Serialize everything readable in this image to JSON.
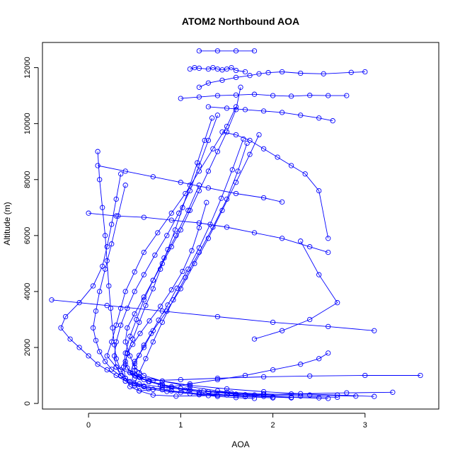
{
  "chart_data": {
    "type": "line",
    "title": "ATOM2 Northbound AOA",
    "xlabel": "AOA",
    "ylabel": "Altitude (m)",
    "xlim": [
      -0.5,
      3.8
    ],
    "ylim": [
      -200,
      12900
    ],
    "x_ticks": [
      0,
      1,
      2,
      3
    ],
    "y_ticks": [
      0,
      2000,
      4000,
      6000,
      8000,
      10000,
      12000
    ],
    "grid": false,
    "legend": "none",
    "color": "#0000ff",
    "markers": "open-circle",
    "series": [
      {
        "x": [
          2.6,
          2.2,
          1.8,
          1.4,
          1.1,
          0.8,
          0.6,
          0.5,
          0.45,
          0.4,
          0.42,
          0.5,
          0.6,
          0.7,
          0.8,
          0.9,
          1.0,
          1.1,
          1.2,
          1.3,
          1.4,
          1.5,
          1.6,
          1.65
        ],
        "y": [
          180,
          220,
          300,
          450,
          600,
          800,
          1000,
          1300,
          1700,
          2200,
          2700,
          3200,
          3800,
          4400,
          5000,
          5600,
          6200,
          6900,
          7600,
          8300,
          9000,
          9700,
          10500,
          11300
        ]
      },
      {
        "x": [
          3.1,
          2.7,
          2.3,
          1.9,
          1.5,
          1.1,
          0.8,
          0.5,
          0.3,
          0.2,
          0.25,
          0.3,
          0.35,
          0.4,
          0.5,
          0.6,
          0.75,
          0.9,
          1.05,
          1.2,
          1.35,
          1.5,
          1.6
        ],
        "y": [
          250,
          300,
          350,
          420,
          520,
          650,
          800,
          1000,
          1300,
          1700,
          2200,
          2800,
          3400,
          4000,
          4700,
          5400,
          6100,
          6800,
          7500,
          8300,
          9100,
          9900,
          10600
        ]
      },
      {
        "x": [
          2.5,
          2.0,
          1.6,
          1.2,
          0.9,
          0.6,
          0.4,
          0.3,
          0.2,
          0.1,
          0.0,
          -0.1,
          -0.2,
          -0.3,
          -0.25,
          -0.1,
          0.05,
          0.15,
          0.2,
          0.25,
          0.3,
          0.35
        ],
        "y": [
          200,
          230,
          280,
          350,
          450,
          600,
          800,
          1000,
          1200,
          1400,
          1700,
          2000,
          2300,
          2700,
          3100,
          3600,
          4200,
          4900,
          5600,
          6400,
          7300,
          8200
        ]
      },
      {
        "x": [
          2.9,
          2.4,
          1.9,
          1.5,
          1.1,
          0.8,
          0.55,
          0.4,
          0.35,
          0.3,
          0.28,
          0.26,
          0.24,
          0.22,
          0.2,
          0.18,
          0.15,
          0.12,
          0.1
        ],
        "y": [
          260,
          300,
          340,
          400,
          480,
          580,
          700,
          900,
          1200,
          1600,
          2100,
          2700,
          3400,
          4200,
          5100,
          6000,
          7000,
          8000,
          9000
        ]
      },
      {
        "x": [
          3.6,
          3.0,
          2.4,
          1.9,
          1.4,
          1.0,
          0.7,
          0.5,
          0.45,
          0.5,
          0.6,
          0.7,
          0.85,
          1.0,
          1.15,
          1.3,
          1.45,
          1.6,
          1.75,
          1.85
        ],
        "y": [
          1000,
          1000,
          980,
          950,
          900,
          850,
          820,
          900,
          1100,
          1500,
          2000,
          2600,
          3300,
          4100,
          5000,
          5900,
          6900,
          7900,
          8900,
          9600
        ]
      },
      {
        "x": [
          2.2,
          1.9,
          1.6,
          1.3,
          1.0,
          0.8,
          0.6,
          0.45,
          0.4,
          0.42,
          0.48,
          0.55,
          0.62,
          0.7,
          0.78,
          0.86,
          0.94,
          1.02,
          1.1,
          1.18,
          1.26,
          1.34
        ],
        "y": [
          200,
          250,
          330,
          420,
          540,
          680,
          850,
          1100,
          1400,
          1800,
          2300,
          2900,
          3500,
          4100,
          4800,
          5500,
          6200,
          7000,
          7800,
          8600,
          9400,
          10200
        ]
      },
      {
        "x": [
          2.6,
          2.5,
          2.3,
          2.0,
          1.7,
          1.4,
          1.1,
          0.9,
          0.7,
          0.55,
          0.45,
          0.4,
          0.38,
          0.4,
          0.45,
          0.52,
          0.6,
          0.7,
          0.82,
          0.95,
          1.08,
          1.2
        ],
        "y": [
          1800,
          1600,
          1400,
          1200,
          1000,
          850,
          700,
          600,
          500,
          450,
          600,
          900,
          1300,
          1800,
          2400,
          3000,
          3700,
          4400,
          5200,
          6000,
          6900,
          7800
        ]
      },
      {
        "x": [
          2.0,
          1.7,
          1.4,
          1.1,
          0.85,
          0.65,
          0.5,
          0.4,
          0.35,
          0.3,
          0.28,
          0.3,
          0.35,
          0.42,
          0.5,
          0.6,
          0.72,
          0.85,
          0.98,
          1.1,
          1.2,
          1.3,
          1.4
        ],
        "y": [
          200,
          240,
          290,
          350,
          430,
          520,
          640,
          800,
          1000,
          1300,
          1700,
          2200,
          2800,
          3400,
          4000,
          4600,
          5300,
          6000,
          6800,
          7600,
          8500,
          9400,
          10300
        ]
      },
      {
        "x": [
          3.3,
          2.8,
          2.2,
          1.7,
          1.3,
          0.95,
          0.7,
          0.55,
          0.5,
          0.55,
          0.62,
          0.7,
          0.8,
          0.92,
          1.05,
          1.2,
          1.35,
          1.5,
          1.62,
          1.72
        ],
        "y": [
          400,
          380,
          340,
          310,
          280,
          260,
          300,
          450,
          700,
          1100,
          1600,
          2200,
          2900,
          3700,
          4500,
          5400,
          6300,
          7300,
          8300,
          9300
        ]
      },
      {
        "x": [
          1.8,
          1.6,
          1.4,
          1.2,
          1.0,
          0.8,
          0.6,
          0.45,
          0.35,
          0.25,
          0.18,
          0.12,
          0.08,
          0.05,
          0.08,
          0.12,
          0.18,
          0.25,
          0.32,
          0.4
        ],
        "y": [
          180,
          210,
          250,
          310,
          390,
          490,
          620,
          780,
          980,
          1220,
          1500,
          1850,
          2250,
          2700,
          3300,
          4000,
          4800,
          5700,
          6700,
          7800
        ]
      },
      {
        "x": [
          2.7,
          2.3,
          1.9,
          1.55,
          1.25,
          1.0,
          0.8,
          0.65,
          0.55,
          0.5,
          0.5,
          0.55,
          0.6,
          0.68,
          0.76,
          0.86,
          0.96,
          1.08,
          1.2,
          1.32,
          1.44,
          1.56,
          1.68
        ],
        "y": [
          220,
          260,
          310,
          370,
          450,
          540,
          650,
          790,
          960,
          1170,
          1420,
          1720,
          2080,
          2500,
          2980,
          3520,
          4120,
          4800,
          5560,
          6400,
          7330,
          8350,
          9450
        ]
      },
      {
        "x": [
          1.5,
          1.35,
          1.2,
          1.05,
          0.9,
          0.78,
          0.66,
          0.56,
          0.48,
          0.42,
          0.4,
          0.42,
          0.48,
          0.56,
          0.66,
          0.78,
          0.9,
          1.02,
          1.12,
          1.2,
          1.28
        ],
        "y": [
          300,
          350,
          410,
          480,
          560,
          660,
          780,
          920,
          1080,
          1270,
          1500,
          1780,
          2110,
          2500,
          2950,
          3470,
          4060,
          4720,
          5460,
          6280,
          7180
        ]
      },
      {
        "x": [
          1.2,
          1.3,
          1.45,
          1.6,
          1.75,
          1.85,
          1.95,
          2.1,
          2.3,
          2.55,
          2.85,
          3.0
        ],
        "y": [
          11300,
          11450,
          11550,
          11650,
          11720,
          11780,
          11820,
          11850,
          11800,
          11780,
          11830,
          11850
        ]
      },
      {
        "x": [
          1.0,
          1.2,
          1.4,
          1.6,
          1.8,
          2.0,
          2.2,
          2.4,
          2.6,
          2.8
        ],
        "y": [
          10900,
          10950,
          11000,
          11020,
          11050,
          11000,
          10980,
          11010,
          11000,
          11000
        ]
      },
      {
        "x": [
          1.2,
          1.4,
          1.6,
          1.8
        ],
        "y": [
          12600,
          12600,
          12600,
          12600
        ]
      },
      {
        "x": [
          1.1,
          1.15,
          1.2,
          1.3,
          1.35,
          1.4,
          1.45,
          1.5,
          1.55,
          1.6,
          1.7
        ],
        "y": [
          11950,
          12000,
          11980,
          11950,
          12000,
          11950,
          11920,
          11950,
          12000,
          11900,
          11850
        ]
      },
      {
        "x": [
          -0.4,
          0.2,
          0.8,
          1.4,
          2.0,
          2.6,
          3.1
        ],
        "y": [
          3700,
          3500,
          3300,
          3100,
          2900,
          2750,
          2600
        ]
      },
      {
        "x": [
          1.3,
          1.5,
          1.7,
          1.9,
          2.1,
          2.3,
          2.5,
          2.65
        ],
        "y": [
          10600,
          10550,
          10500,
          10450,
          10400,
          10300,
          10200,
          10100
        ]
      },
      {
        "x": [
          1.45,
          1.6,
          1.75,
          1.9,
          2.05,
          2.2,
          2.35,
          2.5,
          2.6
        ],
        "y": [
          9700,
          9600,
          9400,
          9100,
          8800,
          8500,
          8200,
          7600,
          5900
        ]
      },
      {
        "x": [
          0.0,
          0.3,
          0.6,
          0.9,
          1.2,
          1.5,
          1.8,
          2.1,
          2.4,
          2.6
        ],
        "y": [
          6800,
          6700,
          6650,
          6550,
          6450,
          6300,
          6100,
          5900,
          5600,
          5400
        ]
      },
      {
        "x": [
          2.3,
          2.5,
          2.7,
          2.4,
          2.1,
          1.8
        ],
        "y": [
          5800,
          4600,
          3600,
          3000,
          2600,
          2300
        ]
      },
      {
        "x": [
          0.1,
          0.4,
          0.7,
          1.0,
          1.3,
          1.6,
          1.9,
          2.1
        ],
        "y": [
          8500,
          8300,
          8100,
          7900,
          7700,
          7500,
          7350,
          7200
        ]
      }
    ]
  }
}
